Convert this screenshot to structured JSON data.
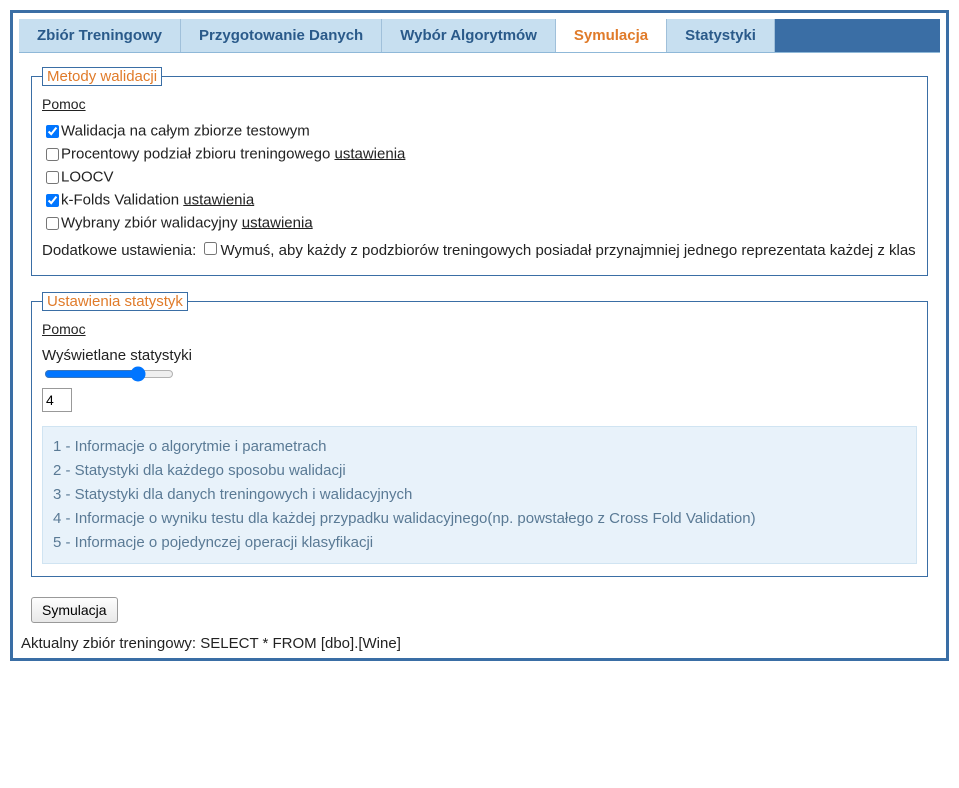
{
  "tabs": {
    "items": [
      "Zbiór Treningowy",
      "Przygotowanie Danych",
      "Wybór Algorytmów",
      "Symulacja",
      "Statystyki"
    ],
    "activeIndex": 3
  },
  "validation": {
    "legend": "Metody walidacji",
    "helpLabel": "Pomoc",
    "options": [
      {
        "label": "Walidacja na całym zbiorze testowym",
        "checked": true,
        "settings": null
      },
      {
        "label": "Procentowy podział zbioru treningowego",
        "checked": false,
        "settings": "ustawienia"
      },
      {
        "label": "LOOCV",
        "checked": false,
        "settings": null
      },
      {
        "label": "k-Folds Validation",
        "checked": true,
        "settings": "ustawienia"
      },
      {
        "label": "Wybrany zbiór walidacyjny",
        "checked": false,
        "settings": "ustawienia"
      }
    ],
    "additionalPrefix": "Dodatkowe ustawienia: ",
    "additionalChecked": false,
    "additionalText": "Wymuś, aby każdy z podzbiorów treningowych posiadał przynajmniej jednego reprezentata każdej z klas"
  },
  "stats": {
    "legend": "Ustawienia statystyk",
    "helpLabel": "Pomoc",
    "sliderLabel": "Wyświetlane statystyki",
    "sliderMin": 1,
    "sliderMax": 5,
    "sliderValue": 4,
    "infoLines": [
      "1 - Informacje o algorytmie i parametrach",
      "2 - Statystyki dla każdego sposobu walidacji",
      "3 - Statystyki dla danych treningowych i walidacyjnych",
      "4 - Informacje o wyniku testu dla każdej przypadku walidacyjnego(np. powstałego z Cross Fold Validation)",
      "5 - Informacje o pojedynczej operacji klasyfikacji"
    ]
  },
  "simButton": "Symulacja",
  "statusBar": "Aktualny zbiór treningowy: SELECT * FROM [dbo].[Wine]"
}
